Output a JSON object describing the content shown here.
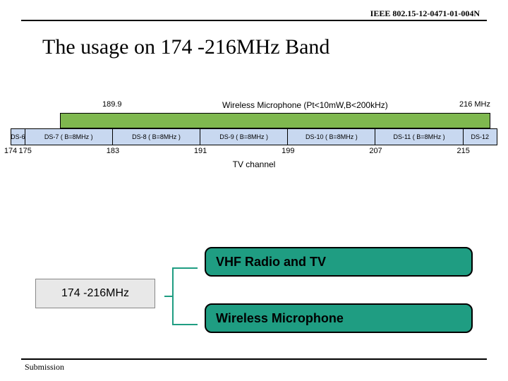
{
  "doc_id": "IEEE 802.15-12-0471-01-004N",
  "title": "The  usage on 174 -216MHz Band",
  "footer": "Submission",
  "mic_band": {
    "color": "#7fb84f",
    "left_freq": "189.9",
    "right_freq": "216 MHz",
    "label": "Wireless Microphone  (Pt<10mW,B<200kHz)"
  },
  "ds_channels": [
    {
      "label": "DS-6",
      "width_pct": 3
    },
    {
      "label": "DS-7 ( B=8MHz )",
      "width_pct": 18
    },
    {
      "label": "DS-8 ( B=8MHz )",
      "width_pct": 18
    },
    {
      "label": "DS-9 ( B=8MHz )",
      "width_pct": 18
    },
    {
      "label": "DS-10 ( B=8MHz )",
      "width_pct": 18
    },
    {
      "label": "DS-11 ( B=8MHz )",
      "width_pct": 18
    },
    {
      "label": "DS-12",
      "width_pct": 7
    }
  ],
  "ds_bg": "#c8d8f0",
  "ticks": [
    {
      "label": "174",
      "pos_pct": 0
    },
    {
      "label": "175",
      "pos_pct": 3
    },
    {
      "label": "183",
      "pos_pct": 21
    },
    {
      "label": "191",
      "pos_pct": 39
    },
    {
      "label": "199",
      "pos_pct": 57
    },
    {
      "label": "207",
      "pos_pct": 75
    },
    {
      "label": "215",
      "pos_pct": 93
    }
  ],
  "axis_label": "TV channel",
  "band_box": "174 -216MHz",
  "usage1": {
    "label": "VHF Radio and TV",
    "bg": "#1f9d82"
  },
  "usage2": {
    "label": "Wireless   Microphone",
    "bg": "#1f9d82"
  },
  "connector_color": "#1f9d82"
}
